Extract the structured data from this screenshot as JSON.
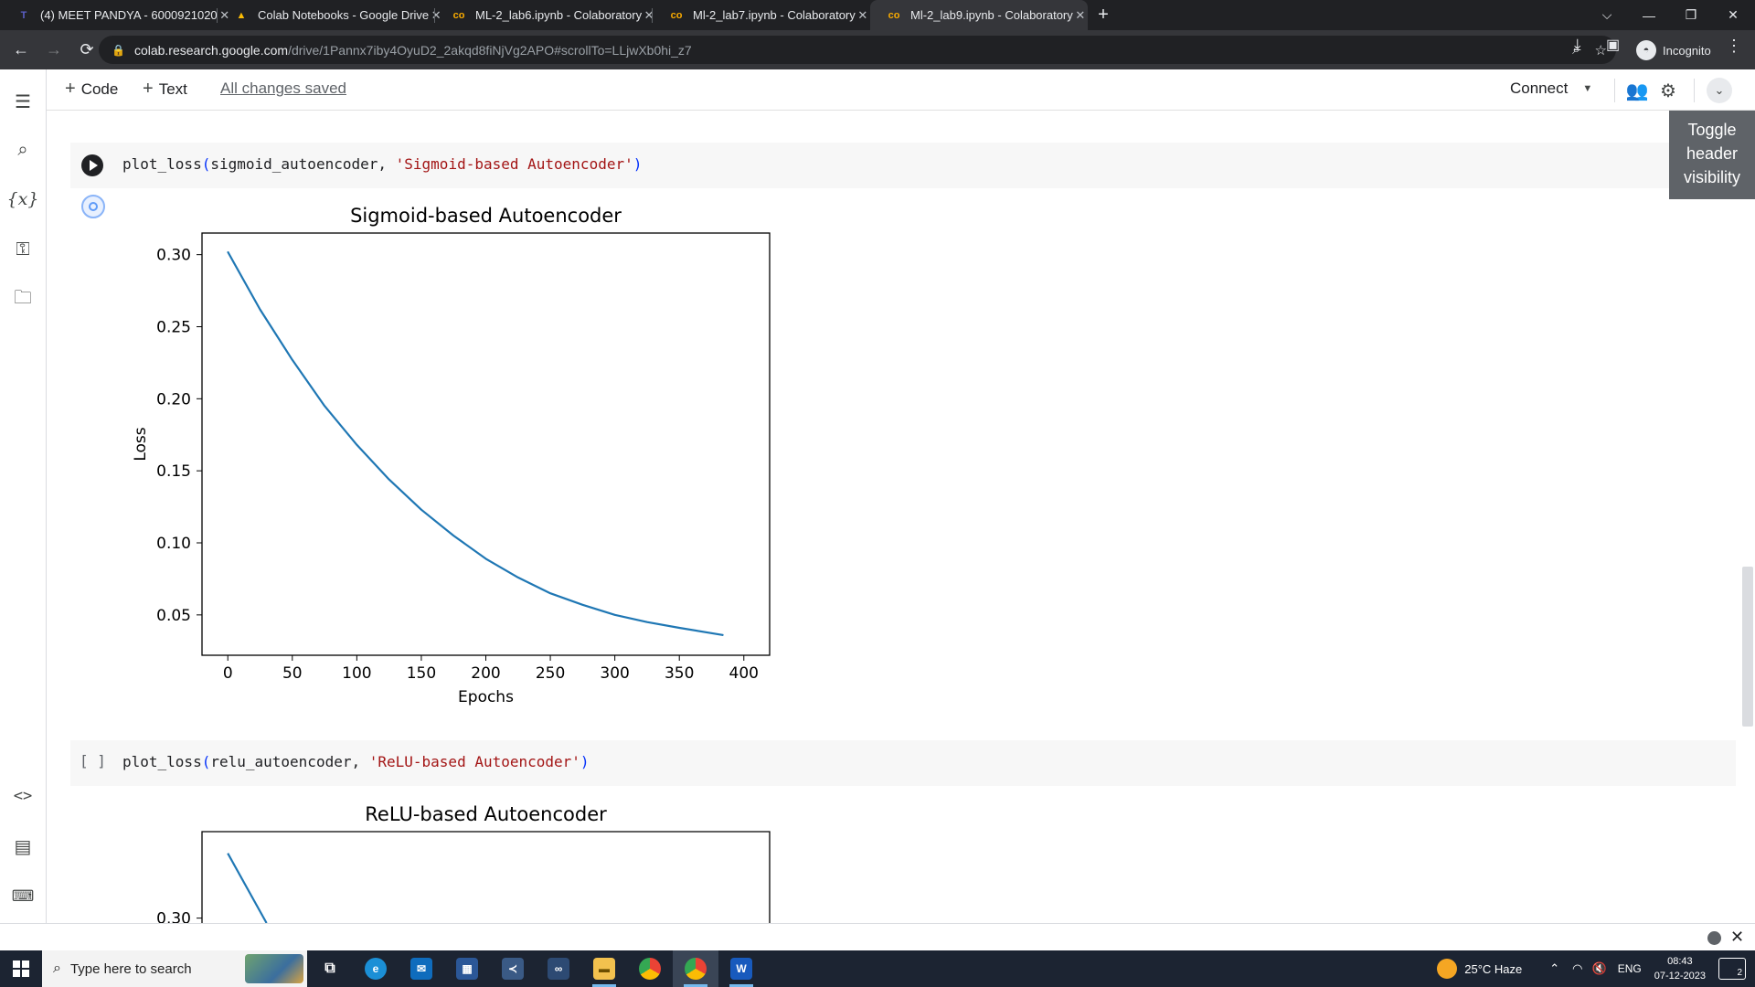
{
  "browser": {
    "tabs": [
      {
        "title": "(4) MEET PANDYA - 6000921020",
        "favicon": "teams-icon",
        "color": "#5b5fc7"
      },
      {
        "title": "Colab Notebooks - Google Drive",
        "favicon": "drive-icon",
        "color": "#fbbc04"
      },
      {
        "title": "ML-2_lab6.ipynb - Colaboratory",
        "favicon": "colab-icon",
        "color": "#f9ab00"
      },
      {
        "title": "Ml-2_lab7.ipynb - Colaboratory",
        "favicon": "colab-icon",
        "color": "#f9ab00"
      },
      {
        "title": "Ml-2_lab9.ipynb - Colaboratory",
        "favicon": "colab-icon",
        "color": "#f9ab00"
      }
    ],
    "active_tab": 4,
    "url_host": "colab.research.google.com",
    "url_path": "/drive/1Pannx7iby4OyuD2_2akqd8fiNjVg2APO#scrollTo=LLjwXb0hi_z7",
    "incognito_label": "Incognito"
  },
  "colab": {
    "add_code_label": "Code",
    "add_text_label": "Text",
    "save_status": "All changes saved",
    "connect_label": "Connect",
    "tooltip": "Toggle header visibility",
    "accent_color": "#1a73e8"
  },
  "cells": [
    {
      "fn": "plot_loss",
      "arg": "sigmoid_autoencoder",
      "string_arg": "'Sigmoid-based Autoencoder'",
      "executed": true
    },
    {
      "fn": "plot_loss",
      "arg": "relu_autoencoder",
      "string_arg": "'ReLU-based Autoencoder'",
      "bracket": "[ ]",
      "executed": false
    }
  ],
  "chart_data": [
    {
      "type": "line",
      "title": "Sigmoid-based Autoencoder",
      "xlabel": "Epochs",
      "ylabel": "Loss",
      "xlim": [
        -20,
        420
      ],
      "ylim": [
        0.022,
        0.315
      ],
      "xticks": [
        0,
        50,
        100,
        150,
        200,
        250,
        300,
        350,
        400
      ],
      "yticks": [
        0.05,
        0.1,
        0.15,
        0.2,
        0.25,
        0.3
      ],
      "ytick_labels": [
        "0.05",
        "0.10",
        "0.15",
        "0.20",
        "0.25",
        "0.30"
      ],
      "line_color": "#1f77b4",
      "grid": false,
      "series": [
        {
          "x": [
            0,
            25,
            50,
            75,
            100,
            125,
            150,
            175,
            200,
            225,
            250,
            275,
            300,
            325,
            350,
            384
          ],
          "values": [
            0.302,
            0.262,
            0.227,
            0.195,
            0.168,
            0.144,
            0.123,
            0.105,
            0.089,
            0.076,
            0.065,
            0.057,
            0.05,
            0.045,
            0.041,
            0.036
          ]
        }
      ]
    },
    {
      "type": "line",
      "title": "ReLU-based Autoencoder",
      "ylabel": "",
      "yticks": [
        0.3
      ],
      "ytick_labels": [
        "0.30"
      ],
      "line_color": "#1f77b4",
      "series": [
        {
          "x": [
            0,
            30
          ],
          "values": [
            0.345,
            0.29
          ]
        }
      ]
    }
  ],
  "taskbar": {
    "search_placeholder": "Type here to search",
    "weather": "25°C  Haze",
    "lang": "ENG",
    "time": "08:43",
    "date": "07-12-2023",
    "notifications": "2"
  }
}
